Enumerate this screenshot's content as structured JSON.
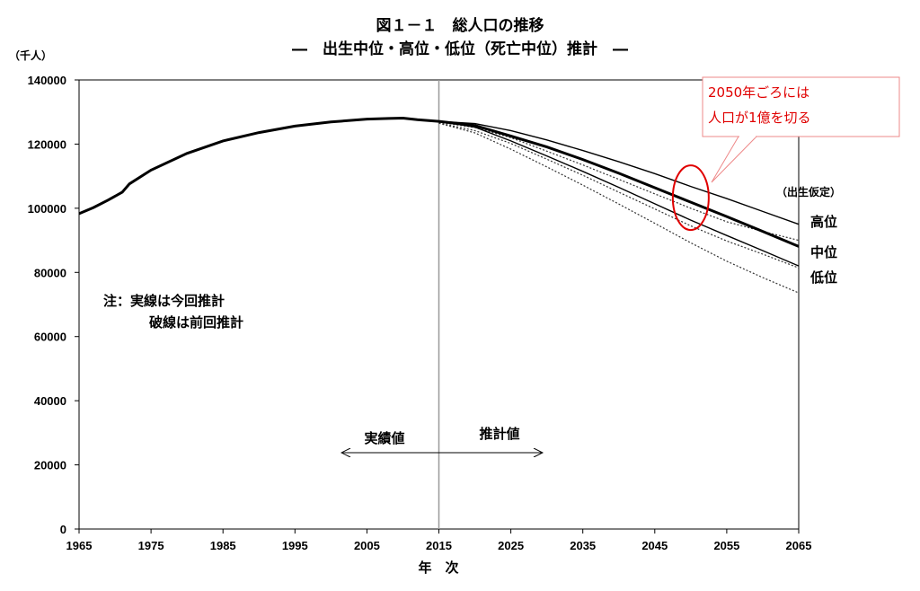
{
  "chart_data": {
    "type": "line",
    "title": "図１－１　総人口の推移",
    "subtitle": "―　出生中位・高位・低位（死亡中位）推計　―",
    "ylabel": "（千人）",
    "xlabel": "年　次",
    "xlim": [
      1965,
      2065
    ],
    "ylim": [
      0,
      140000
    ],
    "x_ticks": [
      "1965",
      "1975",
      "1985",
      "1995",
      "2005",
      "2015",
      "2025",
      "2035",
      "2045",
      "2055",
      "2065"
    ],
    "y_ticks": [
      "0",
      "20000",
      "40000",
      "60000",
      "80000",
      "100000",
      "120000",
      "140000"
    ],
    "grid": false,
    "divider_x": 2015,
    "actual": {
      "x": [
        1965,
        1967,
        1969,
        1971,
        1972,
        1975,
        1980,
        1985,
        1990,
        1995,
        2000,
        2005,
        2008,
        2010,
        2012,
        2015
      ],
      "y": [
        98300,
        100200,
        102500,
        105000,
        107600,
        111900,
        117100,
        121000,
        123600,
        125600,
        126900,
        127800,
        128000,
        128100,
        127600,
        127100
      ]
    },
    "current_projection": {
      "x": [
        2015,
        2020,
        2025,
        2030,
        2035,
        2040,
        2045,
        2050,
        2055,
        2060,
        2065
      ],
      "series": [
        {
          "name": "高位",
          "values": [
            127100,
            126400,
            124200,
            121300,
            118000,
            114500,
            110800,
            106800,
            103000,
            99000,
            95000
          ]
        },
        {
          "name": "中位",
          "values": [
            127100,
            125800,
            122500,
            119100,
            115200,
            110900,
            106400,
            101900,
            97400,
            92800,
            88100
          ]
        },
        {
          "name": "低位",
          "values": [
            127100,
            125300,
            121000,
            116300,
            111500,
            106500,
            101400,
            96300,
            91500,
            86800,
            82000
          ]
        }
      ]
    },
    "previous_projection": {
      "x": [
        2015,
        2020,
        2025,
        2030,
        2035,
        2040,
        2045,
        2050,
        2055,
        2060,
        2065
      ],
      "series": [
        {
          "values": [
            126800,
            125200,
            122000,
            117800,
            113500,
            109000,
            104500,
            100000,
            95800,
            92800,
            90000
          ]
        },
        {
          "values": [
            126600,
            124200,
            120200,
            115300,
            110300,
            105000,
            99800,
            94500,
            89800,
            85700,
            81400
          ]
        },
        {
          "values": [
            126500,
            123500,
            118400,
            112900,
            107200,
            101300,
            95300,
            89200,
            83500,
            78400,
            73600
          ]
        }
      ]
    },
    "series_labels": [
      "高位",
      "中位",
      "低位"
    ],
    "assumption_label": "（出生仮定）",
    "note_line1": "注：実線は今回推計",
    "note_line2": "破線は前回推計",
    "actual_label": "実績値",
    "projection_label": "推計値",
    "callout_line1": "2050年ごろには",
    "callout_line2": "人口が1億を切る",
    "highlight_x": 2050,
    "highlight_color": "#e00000"
  }
}
